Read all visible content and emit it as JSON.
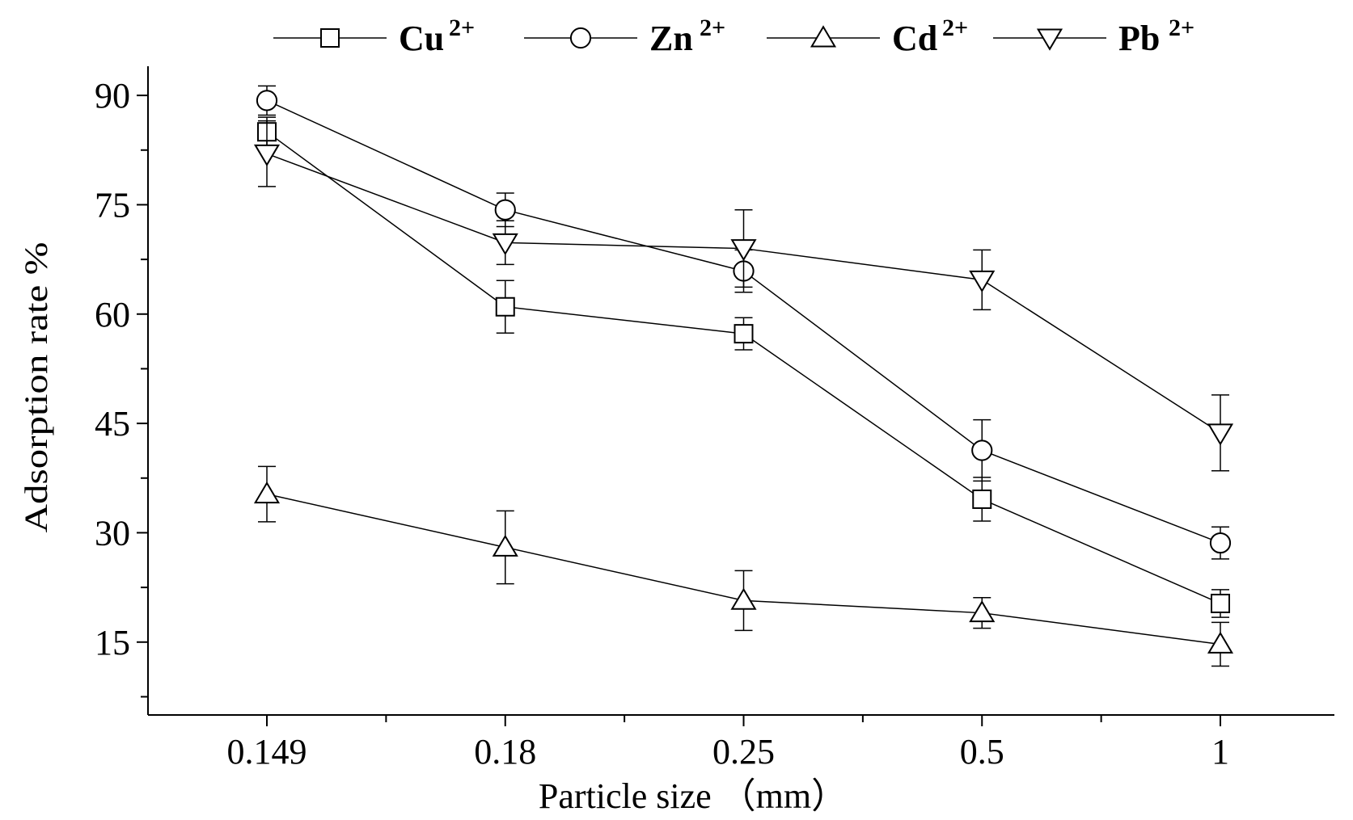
{
  "chart_data": {
    "type": "line",
    "title": "",
    "xlabel": "Particle size （mm）",
    "ylabel": "Adsorption rate %",
    "categories": [
      "0.149",
      "0.18",
      "0.25",
      "0.5",
      "1"
    ],
    "ylim": [
      5,
      94
    ],
    "yticks": [
      15,
      30,
      45,
      60,
      75,
      90
    ],
    "grid": false,
    "legend_position": "top",
    "series": [
      {
        "name": "Cu",
        "superscript": "2+",
        "marker": "square",
        "values": [
          85.0,
          61.0,
          57.3,
          34.6,
          20.3
        ],
        "errors": [
          2.0,
          3.6,
          2.2,
          3.0,
          1.9
        ]
      },
      {
        "name": "Zn",
        "superscript": "2+",
        "marker": "circle",
        "values": [
          89.3,
          74.3,
          65.9,
          41.3,
          28.6
        ],
        "errors": [
          2.0,
          2.3,
          2.9,
          4.2,
          2.2
        ]
      },
      {
        "name": "Cd",
        "superscript": "2+",
        "marker": "triangle-up",
        "values": [
          35.3,
          28.0,
          20.7,
          19.0,
          14.7
        ],
        "errors": [
          3.8,
          5.0,
          4.1,
          2.1,
          3.0
        ]
      },
      {
        "name": "Pb",
        "superscript": "2+",
        "marker": "triangle-down",
        "values": [
          82.0,
          69.8,
          69.0,
          64.7,
          43.7
        ],
        "errors": [
          4.5,
          3.0,
          5.3,
          4.1,
          5.2
        ]
      }
    ]
  }
}
